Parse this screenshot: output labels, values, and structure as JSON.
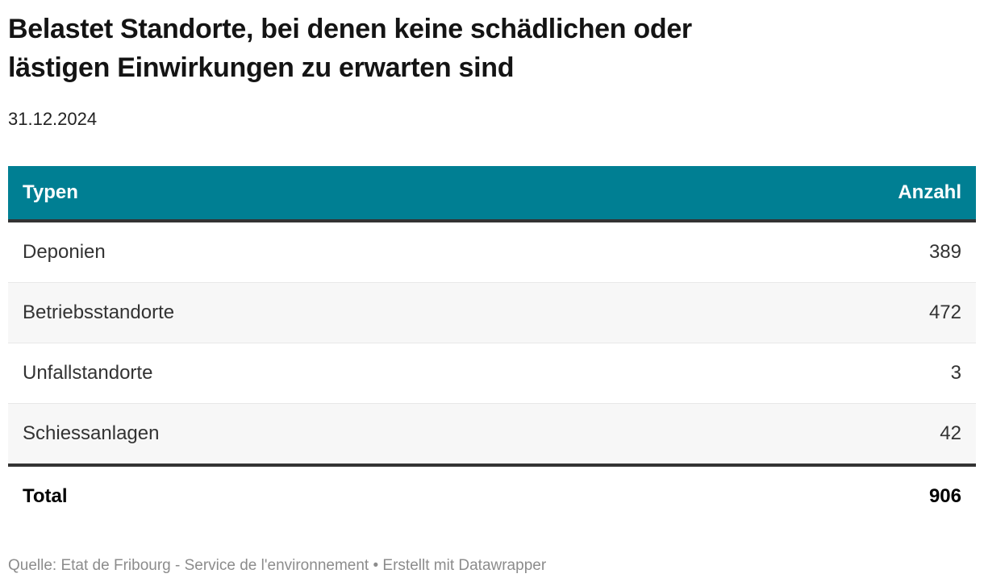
{
  "header": {
    "title_lines": [
      "Belastet Standorte, bei denen keine schädlichen oder",
      "lästigen Einwirkungen zu erwarten sind"
    ],
    "date": "31.12.2024"
  },
  "table": {
    "columns": [
      "Typen",
      "Anzahl"
    ],
    "rows": [
      {
        "type": "Deponien",
        "count": "389"
      },
      {
        "type": "Betriebsstandorte",
        "count": "472"
      },
      {
        "type": "Unfallstandorte",
        "count": "3"
      },
      {
        "type": "Schiessanlagen",
        "count": "42"
      }
    ],
    "total": {
      "label": "Total",
      "count": "906"
    }
  },
  "footer": {
    "source_label": "Quelle:",
    "source": "Etat de Fribourg - Service de l'environnement",
    "separator": "•",
    "credit": "Erstellt mit Datawrapper"
  },
  "colors": {
    "header_background": "#007F93",
    "header_text": "#ffffff",
    "zebra_row": "#f7f7f7",
    "divider_dark": "#333333",
    "row_divider": "#e8e8e8",
    "footer_text": "#8c8c8c"
  },
  "chart_data": {
    "type": "table",
    "title": "Belastet Standorte, bei denen keine schädlichen oder lästigen Einwirkungen zu erwarten sind",
    "subtitle": "31.12.2024",
    "columns": [
      "Typen",
      "Anzahl"
    ],
    "rows": [
      [
        "Deponien",
        389
      ],
      [
        "Betriebsstandorte",
        472
      ],
      [
        "Unfallstandorte",
        3
      ],
      [
        "Schiessanlagen",
        42
      ]
    ],
    "total_row": [
      "Total",
      906
    ],
    "source": "Etat de Fribourg - Service de l'environnement",
    "credit": "Erstellt mit Datawrapper"
  }
}
